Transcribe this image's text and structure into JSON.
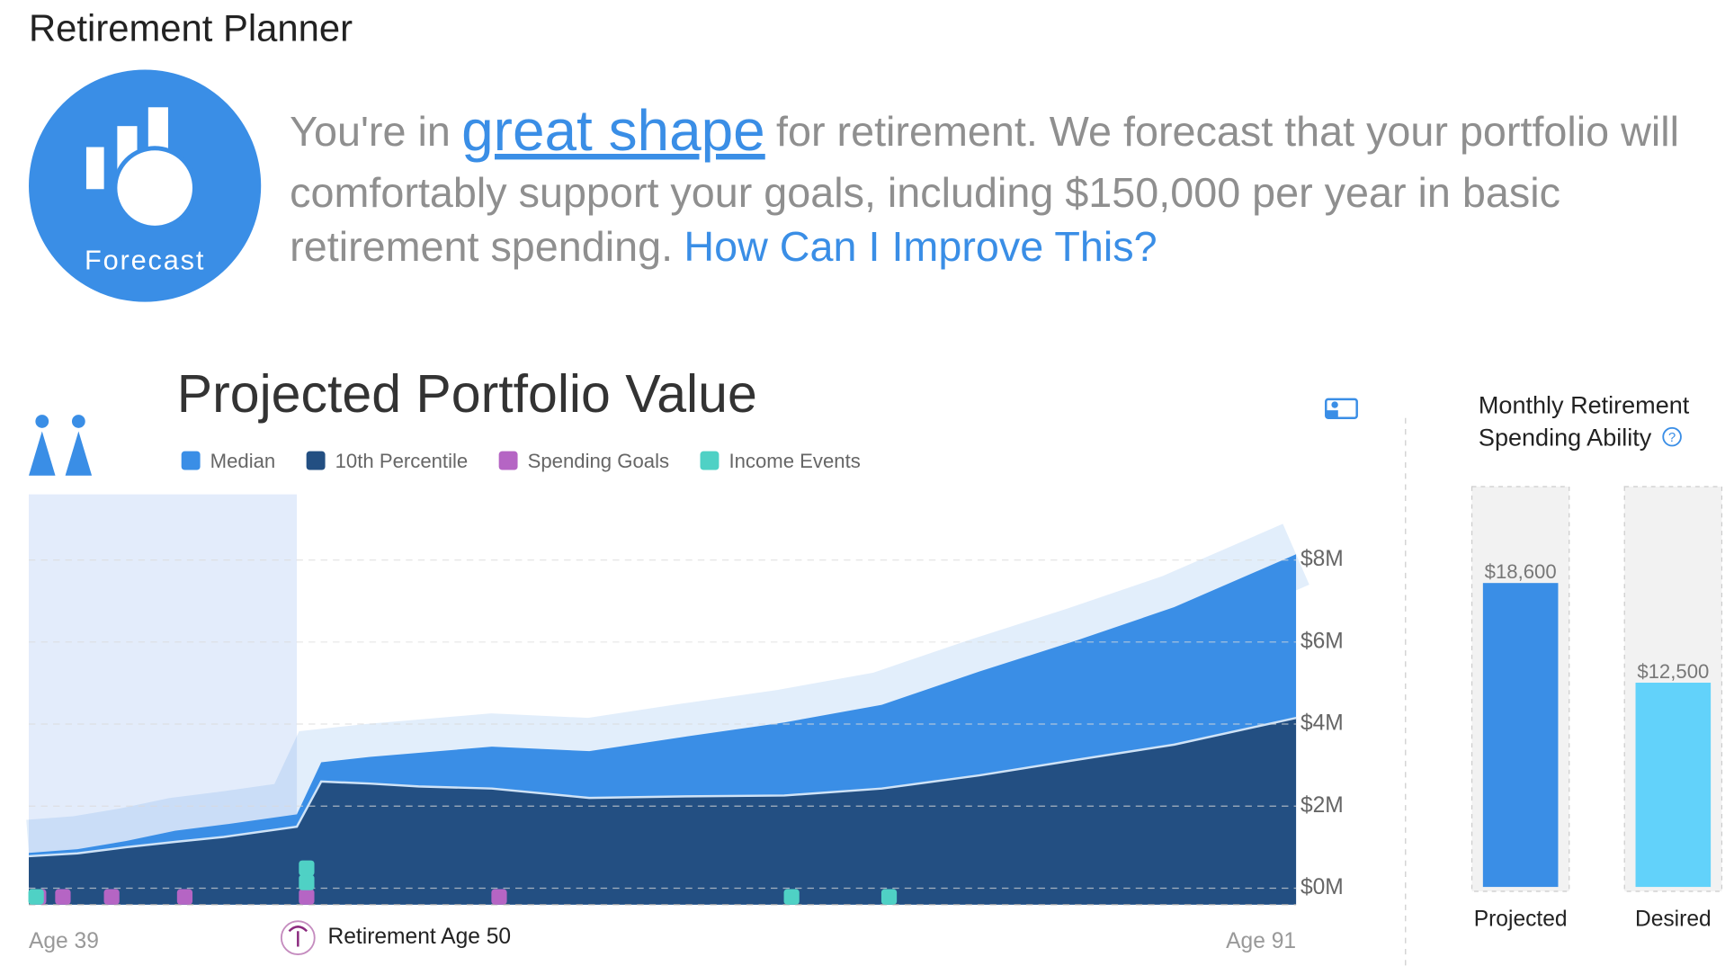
{
  "header": {
    "title": "Retirement Planner"
  },
  "forecast_label": "Forecast",
  "intro": {
    "lead": "You're in",
    "highlight": "great shape",
    "line1_rest": "for retirement. We forecast that your portfolio will",
    "line2": "comfortably support your goals, including $150,000 per year in basic",
    "line3": "retirement spending.",
    "link": "How Can I Improve This?"
  },
  "chart_data": [
    {
      "type": "area",
      "title": "Projected Portfolio Value",
      "x": [
        39,
        41,
        43,
        45,
        47,
        50,
        51,
        53,
        55,
        58,
        62,
        66,
        70,
        74,
        78,
        82,
        86,
        91
      ],
      "series": [
        {
          "name": "Median",
          "color": "#3a8ee6",
          "values": [
            0.86,
            0.95,
            1.15,
            1.4,
            1.55,
            1.8,
            3.07,
            3.2,
            3.3,
            3.45,
            3.34,
            3.7,
            4.04,
            4.47,
            5.28,
            6.04,
            6.85,
            8.14
          ]
        },
        {
          "name": "10th Percentile",
          "color": "#234f82",
          "values": [
            0.78,
            0.85,
            1.0,
            1.13,
            1.25,
            1.5,
            2.6,
            2.55,
            2.48,
            2.43,
            2.2,
            2.24,
            2.26,
            2.43,
            2.75,
            3.13,
            3.5,
            4.15
          ]
        }
      ],
      "events": [
        {
          "name": "Spending Goals",
          "color": "#b565c4",
          "x": [
            39.4,
            40.4,
            42.4,
            45.4,
            50.4,
            58.3
          ]
        },
        {
          "name": "Income Events",
          "color": "#4fd1c5",
          "x": [
            39.3,
            50.4,
            50.4,
            70.3,
            74.3
          ]
        }
      ],
      "xlim": [
        39,
        91
      ],
      "xticks": [
        {
          "value": 39,
          "label": "Age 39"
        },
        {
          "value": 50,
          "label": "Retirement Age 50"
        },
        {
          "value": 91,
          "label": "Age 91"
        }
      ],
      "ylim": [
        -0.4,
        9.6
      ],
      "yticks": [
        {
          "value": 0,
          "label": "$0M"
        },
        {
          "value": 2,
          "label": "$2M"
        },
        {
          "value": 4,
          "label": "$4M"
        },
        {
          "value": 6,
          "label": "$6M"
        },
        {
          "value": 8,
          "label": "$8M"
        }
      ],
      "grid": true
    },
    {
      "type": "bar",
      "title": [
        "Monthly Retirement",
        "Spending Ability"
      ],
      "categories": [
        "Projected",
        "Desired"
      ],
      "values": [
        18600,
        12500
      ],
      "value_labels": [
        "$18,600",
        "$12,500"
      ],
      "colors": [
        "#3a8ee6",
        "#62d2fa"
      ],
      "ylim": [
        0,
        24500
      ]
    }
  ]
}
